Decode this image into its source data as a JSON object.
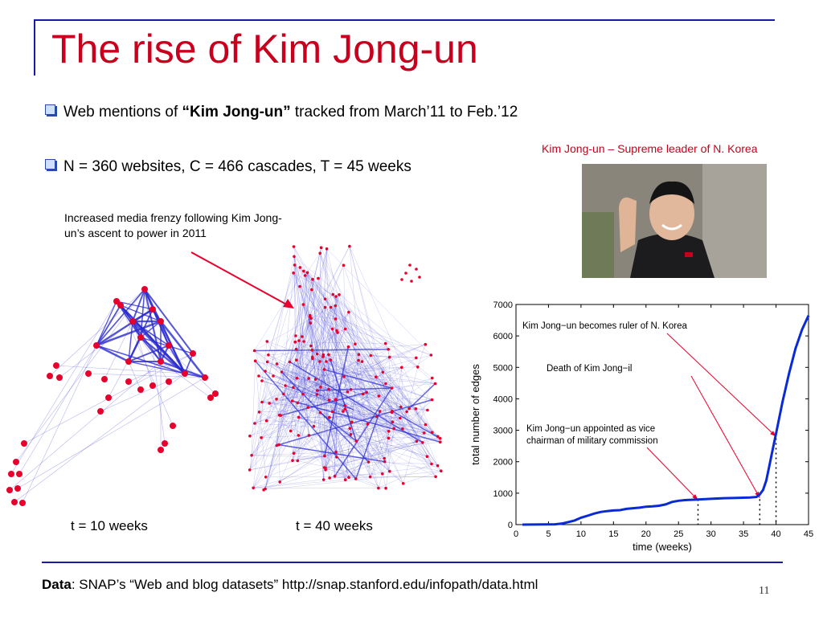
{
  "slide": {
    "title": "The rise of Kim Jong-un",
    "bullet1": {
      "prefix": "Web mentions of ",
      "bold": "“Kim Jong-un”",
      "suffix": " tracked from March’11 to Feb.’12"
    },
    "bullet2": "N = 360 websites, C = 466 cascades, T = 45 weeks",
    "photo_caption": "Kim Jong-un – Supreme leader of N. Korea",
    "network_note": "Increased media frenzy following Kim Jong-un’s ascent to power in 2011",
    "network1_label": "t = 10 weeks",
    "network2_label": "t = 40 weeks",
    "footer": {
      "bold": "Data",
      "text": ": SNAP’s “Web and blog datasets” http://snap.stanford.edu/infopath/data.html"
    },
    "page_number": "11"
  },
  "colors": {
    "title": "#c8001e",
    "rule": "#1a1aa6",
    "node": "#e8002c",
    "edge": "#2a2ad0",
    "line": "#0a2ad6"
  },
  "chart_data": {
    "type": "line",
    "title": "",
    "xlabel": "time (weeks)",
    "ylabel": "total number of edges",
    "xlim": [
      0,
      45
    ],
    "ylim": [
      0,
      7000
    ],
    "xticks": [
      0,
      5,
      10,
      15,
      20,
      25,
      30,
      35,
      40,
      45
    ],
    "yticks": [
      0,
      1000,
      2000,
      3000,
      4000,
      5000,
      6000,
      7000
    ],
    "series": [
      {
        "x": [
          1,
          6,
          7,
          8,
          9,
          10,
          11,
          12,
          13,
          14,
          15,
          16,
          17,
          18,
          19,
          20,
          21,
          22,
          23,
          24,
          25,
          26,
          27,
          28,
          30,
          32,
          34,
          36,
          37,
          37.5,
          38,
          38.5,
          39,
          39.5,
          40,
          41,
          42,
          43,
          44,
          45
        ],
        "y": [
          0,
          10,
          30,
          80,
          130,
          220,
          280,
          350,
          400,
          430,
          450,
          460,
          500,
          520,
          540,
          570,
          580,
          600,
          640,
          720,
          760,
          780,
          790,
          800,
          820,
          840,
          850,
          860,
          880,
          960,
          1100,
          1400,
          1900,
          2400,
          2900,
          3900,
          4800,
          5600,
          6200,
          6650
        ]
      }
    ],
    "annotations": [
      {
        "text": "Kim Jong−un becomes ruler of N. Korea",
        "x": 40,
        "y": 2800
      },
      {
        "text": "Death of Kim Jong−il",
        "x": 37.5,
        "y": 850
      },
      {
        "text": "Kim Jong−un appointed as vice chairman of military commission",
        "x": 28,
        "y": 780
      }
    ],
    "event_weeks": [
      28,
      37.5,
      40
    ]
  }
}
